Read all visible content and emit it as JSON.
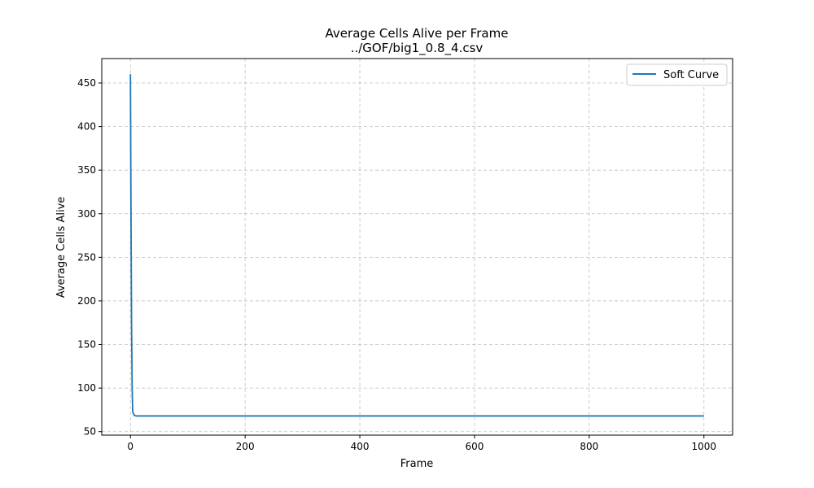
{
  "chart_data": {
    "type": "line",
    "title": "Average Cells Alive per Frame",
    "subtitle": "../GOF/big1_0.8_4.csv",
    "xlabel": "Frame",
    "ylabel": "Average Cells Alive",
    "xlim": [
      -50,
      1050
    ],
    "ylim": [
      46,
      478
    ],
    "xticks": [
      0,
      200,
      400,
      600,
      800,
      1000
    ],
    "yticks": [
      50,
      100,
      150,
      200,
      250,
      300,
      350,
      400,
      450
    ],
    "grid": true,
    "legend_position": "top-right",
    "series": [
      {
        "name": "Soft Curve",
        "color": "#1f77b4",
        "x": [
          0,
          1,
          2,
          3,
          4,
          5,
          7,
          10,
          20,
          50,
          100,
          200,
          400,
          600,
          800,
          1000
        ],
        "y": [
          460,
          300,
          170,
          100,
          73,
          71,
          68.5,
          68,
          68,
          68,
          68,
          68,
          68,
          68,
          68,
          68
        ]
      }
    ]
  }
}
